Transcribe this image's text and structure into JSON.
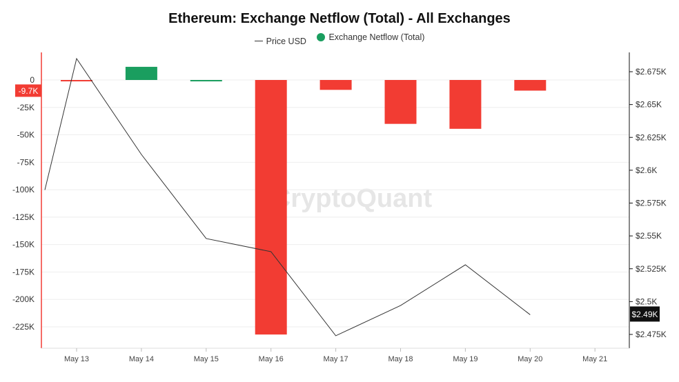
{
  "chart_data": {
    "type": "bar",
    "title": "Ethereum: Exchange Netflow (Total) - All Exchanges",
    "categories": [
      "May 13",
      "May 14",
      "May 15",
      "May 16",
      "May 17",
      "May 18",
      "May 19",
      "May 20",
      "May 21"
    ],
    "series": [
      {
        "name": "Exchange Netflow (Total)",
        "type": "bar",
        "axis": "left",
        "values": [
          -1000,
          12000,
          -500,
          -232000,
          -9000,
          -40000,
          -44500,
          -9700,
          null
        ],
        "colors": [
          "#f23c33",
          "#1a9e5f",
          "#1a9e5f",
          "#f23c33",
          "#f23c33",
          "#f23c33",
          "#f23c33",
          "#f23c33",
          null
        ]
      },
      {
        "name": "Price USD",
        "type": "line",
        "axis": "right",
        "color": "#333333",
        "points": [
          {
            "x": "May 12",
            "y": 2585
          },
          {
            "x": "May 13",
            "y": 2685
          },
          {
            "x": "May 14",
            "y": 2612
          },
          {
            "x": "May 15",
            "y": 2548
          },
          {
            "x": "May 16",
            "y": 2538
          },
          {
            "x": "May 17",
            "y": 2474
          },
          {
            "x": "May 18",
            "y": 2497
          },
          {
            "x": "May 19",
            "y": 2528
          },
          {
            "x": "May 20",
            "y": 2490
          }
        ]
      }
    ],
    "y_left": {
      "ticks": [
        0,
        -25000,
        -50000,
        -75000,
        -100000,
        -125000,
        -150000,
        -175000,
        -200000,
        -225000
      ],
      "tick_labels": [
        "0",
        "-25K",
        "-50K",
        "-75K",
        "-100K",
        "-125K",
        "-150K",
        "-175K",
        "-200K",
        "-225K"
      ],
      "current_value_label": "-9.7K",
      "current_value": -9700
    },
    "y_right": {
      "ticks": [
        2675,
        2650,
        2625,
        2600,
        2575,
        2550,
        2525,
        2500,
        2475
      ],
      "tick_labels": [
        "$2.675K",
        "$2.65K",
        "$2.625K",
        "$2.6K",
        "$2.575K",
        "$2.55K",
        "$2.525K",
        "$2.5K",
        "$2.475K"
      ],
      "current_value_label": "$2.49K",
      "current_value": 2490
    },
    "grid": true,
    "legend_position": "top-center",
    "watermark": "CryptoQuant",
    "colors": {
      "positive": "#1a9e5f",
      "negative": "#f23c33",
      "price_line": "#333333",
      "left_axis": "#f23c33",
      "right_axis": "#111111"
    }
  }
}
